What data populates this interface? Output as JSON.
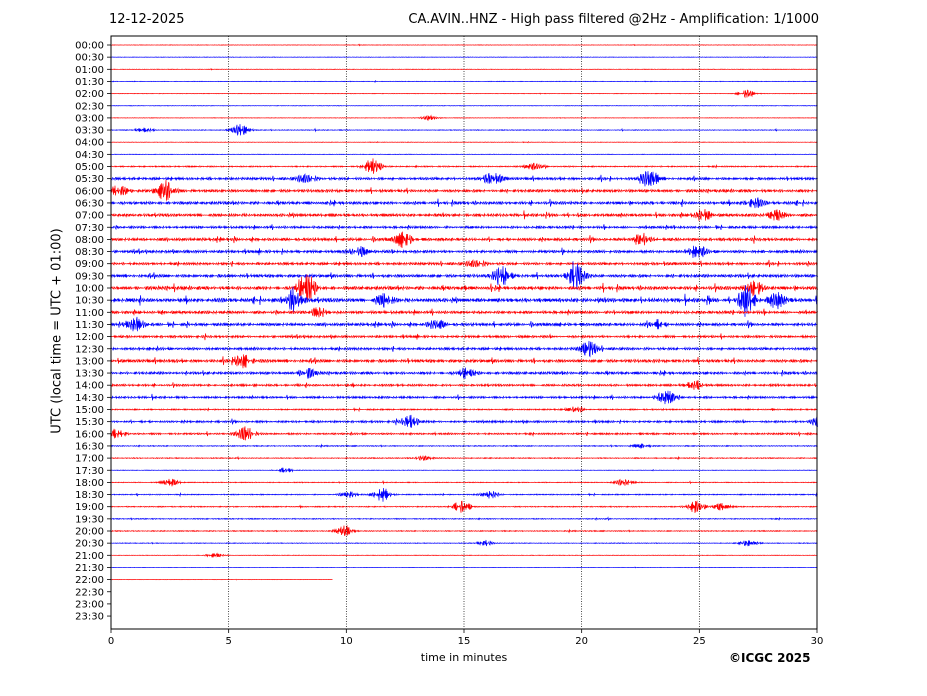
{
  "header": {
    "date": "12-12-2025",
    "title": "CA.AVIN..HNZ - High pass filtered @2Hz - Amplification: 1/1000"
  },
  "footer": {
    "copyright": "©ICGC 2025"
  },
  "chart_data": {
    "type": "line",
    "title": "CA.AVIN..HNZ - High pass filtered @2Hz - Amplification: 1/1000",
    "xlabel": "time in minutes",
    "ylabel": "UTC (local time = UTC + 01:00)",
    "xlim": [
      0,
      30
    ],
    "x_ticks": [
      0,
      5,
      10,
      15,
      20,
      25,
      30
    ],
    "grid": "vertical dotted lines at x = 5, 10, 15, 20, 25",
    "series_colors": [
      "#ff0000",
      "#0000ff"
    ],
    "color_rule": "rows alternate red (full hour) and blue (half hour)",
    "rows": [
      {
        "label": "00:00",
        "end_min": 30,
        "level": 0.2,
        "events": []
      },
      {
        "label": "00:30",
        "end_min": 30,
        "level": 0.2,
        "events": []
      },
      {
        "label": "01:00",
        "end_min": 30,
        "level": 0.2,
        "events": []
      },
      {
        "label": "01:30",
        "end_min": 30,
        "level": 0.2,
        "events": []
      },
      {
        "label": "02:00",
        "end_min": 30,
        "level": 0.2,
        "events": [
          {
            "t": 27.0,
            "amp": 0.5
          }
        ]
      },
      {
        "label": "02:30",
        "end_min": 30,
        "level": 0.2,
        "events": []
      },
      {
        "label": "03:00",
        "end_min": 30,
        "level": 0.2,
        "events": [
          {
            "t": 13.5,
            "amp": 0.3
          }
        ]
      },
      {
        "label": "03:30",
        "end_min": 30,
        "level": 0.3,
        "events": [
          {
            "t": 5.5,
            "amp": 0.8
          },
          {
            "t": 1.4,
            "amp": 0.3
          }
        ]
      },
      {
        "label": "04:00",
        "end_min": 30,
        "level": 0.2,
        "events": []
      },
      {
        "label": "04:30",
        "end_min": 30,
        "level": 0.2,
        "events": []
      },
      {
        "label": "05:00",
        "end_min": 30,
        "level": 0.5,
        "events": [
          {
            "t": 11.1,
            "amp": 1.0
          },
          {
            "t": 17.9,
            "amp": 0.4
          }
        ]
      },
      {
        "label": "05:30",
        "end_min": 30,
        "level": 1.0,
        "events": [
          {
            "t": 22.9,
            "amp": 1.2
          },
          {
            "t": 16.2,
            "amp": 0.8
          },
          {
            "t": 8.3,
            "amp": 0.6
          }
        ]
      },
      {
        "label": "06:00",
        "end_min": 30,
        "level": 1.1,
        "events": [
          {
            "t": 2.3,
            "amp": 1.3
          },
          {
            "t": 0.3,
            "amp": 0.7
          }
        ]
      },
      {
        "label": "06:30",
        "end_min": 30,
        "level": 1.1,
        "events": [
          {
            "t": 27.3,
            "amp": 0.7
          }
        ]
      },
      {
        "label": "07:00",
        "end_min": 30,
        "level": 1.1,
        "events": [
          {
            "t": 25.1,
            "amp": 0.7
          },
          {
            "t": 28.3,
            "amp": 0.6
          }
        ]
      },
      {
        "label": "07:30",
        "end_min": 30,
        "level": 0.9,
        "events": []
      },
      {
        "label": "08:00",
        "end_min": 30,
        "level": 1.1,
        "events": [
          {
            "t": 12.4,
            "amp": 0.9
          },
          {
            "t": 22.5,
            "amp": 0.8
          }
        ]
      },
      {
        "label": "08:30",
        "end_min": 30,
        "level": 1.1,
        "events": [
          {
            "t": 24.9,
            "amp": 0.8
          },
          {
            "t": 10.5,
            "amp": 0.6
          }
        ]
      },
      {
        "label": "09:00",
        "end_min": 30,
        "level": 1.0,
        "events": [
          {
            "t": 15.5,
            "amp": 0.5
          }
        ]
      },
      {
        "label": "09:30",
        "end_min": 30,
        "level": 1.2,
        "events": [
          {
            "t": 19.8,
            "amp": 1.8
          },
          {
            "t": 16.6,
            "amp": 1.2
          }
        ]
      },
      {
        "label": "10:00",
        "end_min": 30,
        "level": 1.3,
        "events": [
          {
            "t": 8.3,
            "amp": 2.0
          },
          {
            "t": 27.3,
            "amp": 1.0
          }
        ]
      },
      {
        "label": "10:30",
        "end_min": 30,
        "level": 1.5,
        "events": [
          {
            "t": 27.0,
            "amp": 2.0
          },
          {
            "t": 7.7,
            "amp": 1.5
          },
          {
            "t": 28.3,
            "amp": 1.0
          },
          {
            "t": 11.6,
            "amp": 0.8
          }
        ]
      },
      {
        "label": "11:00",
        "end_min": 30,
        "level": 1.1,
        "events": [
          {
            "t": 8.8,
            "amp": 0.6
          }
        ]
      },
      {
        "label": "11:30",
        "end_min": 30,
        "level": 1.1,
        "events": [
          {
            "t": 1.0,
            "amp": 0.9
          },
          {
            "t": 13.8,
            "amp": 0.6
          },
          {
            "t": 23.1,
            "amp": 0.6
          }
        ]
      },
      {
        "label": "12:00",
        "end_min": 30,
        "level": 0.9,
        "events": []
      },
      {
        "label": "12:30",
        "end_min": 30,
        "level": 1.0,
        "events": [
          {
            "t": 20.3,
            "amp": 0.9
          }
        ]
      },
      {
        "label": "13:00",
        "end_min": 30,
        "level": 1.2,
        "events": [
          {
            "t": 5.6,
            "amp": 0.8
          }
        ]
      },
      {
        "label": "13:30",
        "end_min": 30,
        "level": 1.0,
        "events": [
          {
            "t": 8.3,
            "amp": 0.6
          },
          {
            "t": 15.1,
            "amp": 0.6
          }
        ]
      },
      {
        "label": "14:00",
        "end_min": 30,
        "level": 0.8,
        "events": [
          {
            "t": 24.8,
            "amp": 0.6
          }
        ]
      },
      {
        "label": "14:30",
        "end_min": 30,
        "level": 0.8,
        "events": [
          {
            "t": 23.6,
            "amp": 1.0
          }
        ]
      },
      {
        "label": "15:00",
        "end_min": 30,
        "level": 0.5,
        "events": [
          {
            "t": 19.7,
            "amp": 0.3
          }
        ]
      },
      {
        "label": "15:30",
        "end_min": 30,
        "level": 0.8,
        "events": [
          {
            "t": 12.7,
            "amp": 0.8
          },
          {
            "t": 30.0,
            "amp": 0.7
          }
        ]
      },
      {
        "label": "16:00",
        "end_min": 30,
        "level": 0.7,
        "events": [
          {
            "t": 5.7,
            "amp": 0.9
          },
          {
            "t": 0.2,
            "amp": 0.6
          }
        ]
      },
      {
        "label": "16:30",
        "end_min": 30,
        "level": 0.4,
        "events": [
          {
            "t": 22.5,
            "amp": 0.3
          }
        ]
      },
      {
        "label": "17:00",
        "end_min": 30,
        "level": 0.4,
        "events": [
          {
            "t": 13.3,
            "amp": 0.4
          }
        ]
      },
      {
        "label": "17:30",
        "end_min": 30,
        "level": 0.2,
        "events": [
          {
            "t": 7.4,
            "amp": 0.3
          }
        ]
      },
      {
        "label": "18:00",
        "end_min": 30,
        "level": 0.3,
        "events": [
          {
            "t": 2.5,
            "amp": 0.5
          },
          {
            "t": 21.8,
            "amp": 0.4
          }
        ]
      },
      {
        "label": "18:30",
        "end_min": 30,
        "level": 0.4,
        "events": [
          {
            "t": 11.5,
            "amp": 0.9
          },
          {
            "t": 16.1,
            "amp": 0.5
          },
          {
            "t": 10.1,
            "amp": 0.4
          }
        ]
      },
      {
        "label": "19:00",
        "end_min": 30,
        "level": 0.4,
        "events": [
          {
            "t": 14.9,
            "amp": 0.8
          },
          {
            "t": 24.8,
            "amp": 1.0
          },
          {
            "t": 25.9,
            "amp": 0.5
          }
        ]
      },
      {
        "label": "19:30",
        "end_min": 30,
        "level": 0.4,
        "events": []
      },
      {
        "label": "20:00",
        "end_min": 30,
        "level": 0.4,
        "events": [
          {
            "t": 9.9,
            "amp": 0.7
          }
        ]
      },
      {
        "label": "20:30",
        "end_min": 30,
        "level": 0.3,
        "events": [
          {
            "t": 27.1,
            "amp": 0.4
          },
          {
            "t": 15.9,
            "amp": 0.3
          }
        ]
      },
      {
        "label": "21:00",
        "end_min": 30,
        "level": 0.2,
        "events": [
          {
            "t": 4.4,
            "amp": 0.3
          }
        ]
      },
      {
        "label": "21:30",
        "end_min": 30,
        "level": 0.1,
        "events": []
      },
      {
        "label": "22:00",
        "end_min": 9.4,
        "level": 0.1,
        "events": []
      },
      {
        "label": "22:30",
        "end_min": 0,
        "level": 0,
        "events": []
      },
      {
        "label": "23:00",
        "end_min": 0,
        "level": 0,
        "events": []
      },
      {
        "label": "23:30",
        "end_min": 0,
        "level": 0,
        "events": []
      }
    ]
  }
}
